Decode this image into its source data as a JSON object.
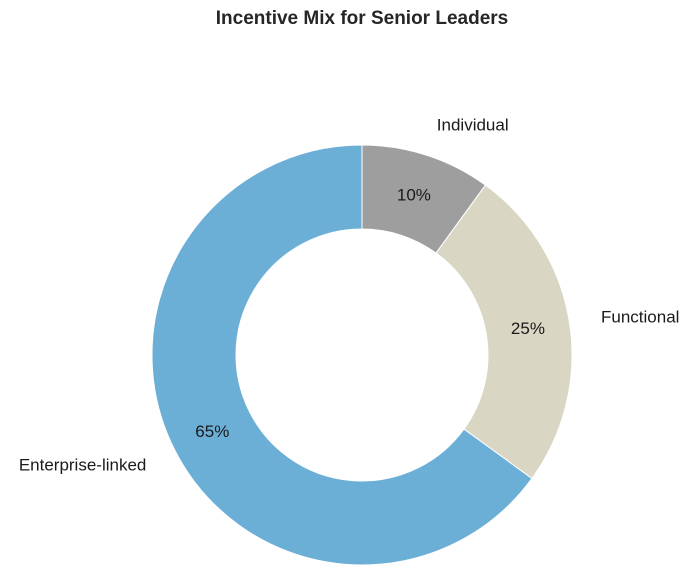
{
  "chart_data": {
    "type": "pie",
    "title": "Incentive Mix for Senior Leaders",
    "categories": [
      "Individual",
      "Functional",
      "Enterprise-linked"
    ],
    "values": [
      10,
      25,
      65
    ],
    "value_labels": [
      "10%",
      "25%",
      "65%"
    ],
    "colors": [
      "#9e9e9e",
      "#d9d6c3",
      "#6baed6"
    ],
    "start_angle": 90,
    "direction": "clockwise",
    "donut": true,
    "legend": "none"
  }
}
